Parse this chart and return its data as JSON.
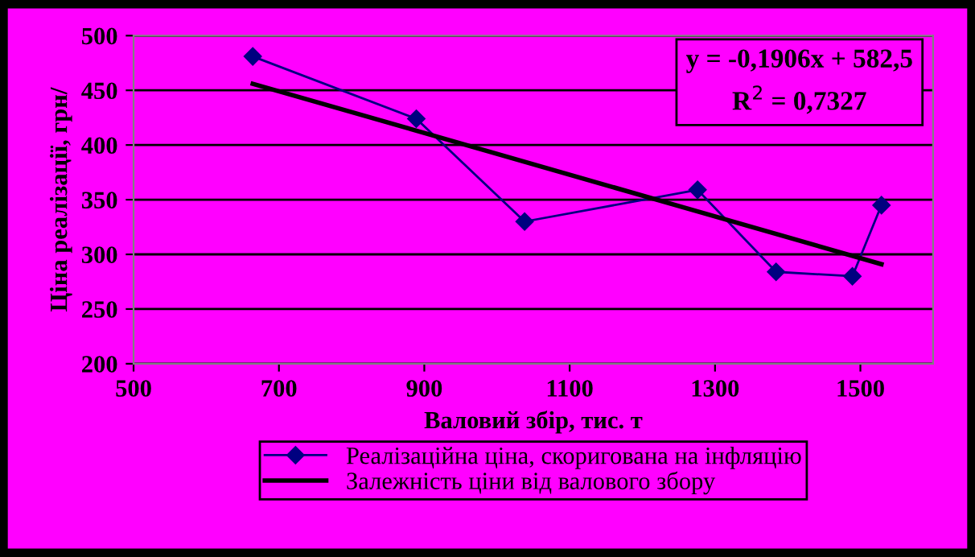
{
  "chart_data": {
    "type": "line",
    "xlabel": "Валовий збір, тис. т",
    "ylabel": "Ціна реалізації, грн/",
    "xlim": [
      500,
      1600
    ],
    "xticks": [
      500,
      700,
      900,
      1100,
      1300,
      1500
    ],
    "ylim": [
      200,
      500
    ],
    "yticks": [
      200,
      250,
      300,
      350,
      400,
      450,
      500
    ],
    "grid": "y",
    "legend": "bottom",
    "annotations": [
      "y = -0,1906x + 582,5\nR$^{2}$ = 0,7327"
    ],
    "series": [
      {
        "name": "Реалізаційна ціна, скоригована на інфляцію",
        "color": "#000080",
        "marker": "diamond",
        "x": [
          664,
          889,
          1038,
          1276,
          1384,
          1489,
          1529
        ],
        "values": [
          481,
          424,
          330,
          359,
          284,
          280,
          345
        ]
      },
      {
        "name": "Залежність ціни від валового збору",
        "color": "#000000",
        "marker": "none",
        "x": [
          664,
          1529
        ],
        "values": [
          456,
          291
        ]
      }
    ]
  }
}
